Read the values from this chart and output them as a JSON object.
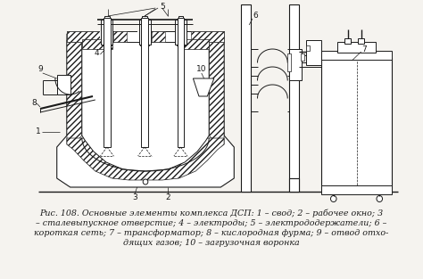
{
  "caption_line1": "Рис. 108. Основные элементы комплекса ДСП: 1 – свод; 2 – рабочее окно; 3",
  "caption_line2": "– сталевыпускное отверстие; 4 – электроды; 5 – электрододержатели; 6 –",
  "caption_line3": "короткая сеть; 7 – трансформатор; 8 – кислородная фурма; 9 – отвод отхо-",
  "caption_line4": "дящих газов; 10 – загрузочная воронка",
  "bg_color": "#f5f3ef",
  "line_color": "#1a1a1a",
  "caption_fontsize": 6.8
}
